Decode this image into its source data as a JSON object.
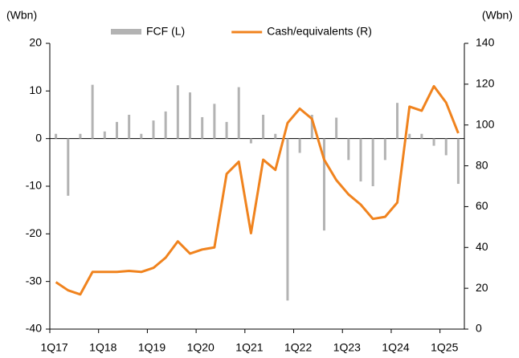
{
  "chart_data": {
    "type": "bar-line",
    "y_label": "(Wbn)",
    "y2_label": "(Wbn)",
    "legend": "top",
    "categories": [
      "1Q17",
      null,
      null,
      null,
      "1Q18",
      null,
      null,
      null,
      "1Q19",
      null,
      null,
      null,
      "1Q20",
      null,
      null,
      null,
      "1Q21",
      null,
      null,
      null,
      "1Q22",
      null,
      null,
      null,
      "1Q23",
      null,
      null,
      null,
      "1Q24",
      null,
      null,
      null,
      "1Q25",
      null
    ],
    "series": [
      {
        "name": "FCF (L)",
        "type": "bar",
        "color": "#b3b3b3",
        "axis": "y",
        "values": [
          1,
          -12,
          1,
          11.3,
          1.5,
          3.5,
          5,
          1,
          3.8,
          5.7,
          11.2,
          9.7,
          4.5,
          7.3,
          3.5,
          10.8,
          -1,
          5,
          1,
          -34,
          -3,
          5,
          -19.3,
          4.4,
          -4.5,
          -9,
          -10,
          -4.5,
          7.5,
          1,
          1,
          -1.5,
          -3.5,
          -9.5
        ]
      },
      {
        "name": "Cash/equivalents (R)",
        "type": "line",
        "color": "#f0831e",
        "axis": "y2",
        "values": [
          23,
          19,
          17,
          28,
          28,
          28,
          28.5,
          28,
          30,
          35,
          43,
          37,
          39,
          40,
          76,
          82,
          47,
          83,
          78,
          101,
          108,
          103,
          83,
          73,
          66,
          61,
          54,
          55,
          62,
          109,
          107,
          119,
          111,
          96
        ]
      }
    ],
    "ylim": [
      -40,
      20
    ],
    "yticks": [
      -40,
      -30,
      -20,
      -10,
      0,
      10,
      20
    ],
    "y2lim": [
      0,
      140
    ],
    "y2ticks": [
      0,
      20,
      40,
      60,
      80,
      100,
      120,
      140
    ]
  }
}
